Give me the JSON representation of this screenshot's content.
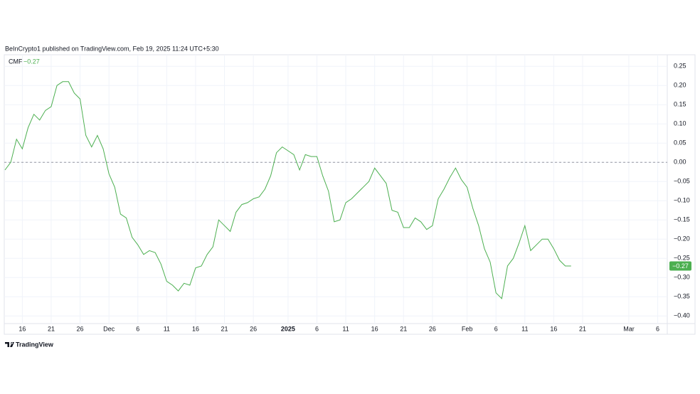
{
  "chart_data": {
    "type": "line",
    "title": "BeInCrypto1 published on TradingView.com, Feb 19, 2025 11:24 UTC+5:30",
    "source": "TradingView",
    "legend_value": "−0.27",
    "price_label": "−0.27",
    "categories": [
      null,
      null,
      null,
      "16",
      null,
      null,
      null,
      null,
      "21",
      null,
      null,
      null,
      null,
      "26",
      null,
      null,
      null,
      null,
      "Dec",
      null,
      null,
      null,
      null,
      "6",
      null,
      null,
      null,
      null,
      "11",
      null,
      null,
      null,
      null,
      "16",
      null,
      null,
      null,
      null,
      "21",
      null,
      null,
      null,
      null,
      "26",
      null,
      null,
      null,
      null,
      null,
      "2025",
      null,
      null,
      null,
      null,
      "6",
      null,
      null,
      null,
      null,
      "11",
      null,
      null,
      null,
      null,
      "16",
      null,
      null,
      null,
      null,
      "21",
      null,
      null,
      null,
      null,
      "26",
      null,
      null,
      null,
      null,
      null,
      "Feb",
      null,
      null,
      null,
      null,
      "6",
      null,
      null,
      null,
      null,
      "11",
      null,
      null,
      null,
      null,
      "16",
      null,
      null,
      null,
      null,
      "21",
      null,
      null,
      null,
      null,
      null,
      null,
      null,
      "Mar",
      null,
      null,
      null,
      null,
      "6",
      null
    ],
    "series": [
      {
        "name": "CMF",
        "color": "#4caf50",
        "values": [
          -0.02,
          0.0,
          0.06,
          0.035,
          0.09,
          0.125,
          0.11,
          0.135,
          0.145,
          0.2,
          0.21,
          0.21,
          0.18,
          0.165,
          0.07,
          0.04,
          0.07,
          0.035,
          -0.03,
          -0.065,
          -0.135,
          -0.145,
          -0.195,
          -0.215,
          -0.24,
          -0.23,
          -0.235,
          -0.265,
          -0.31,
          -0.32,
          -0.335,
          -0.315,
          -0.32,
          -0.275,
          -0.27,
          -0.24,
          -0.22,
          -0.15,
          -0.165,
          -0.18,
          -0.13,
          -0.11,
          -0.105,
          -0.095,
          -0.09,
          -0.07,
          -0.035,
          0.025,
          0.04,
          0.03,
          0.02,
          -0.02,
          0.02,
          0.015,
          0.015,
          -0.035,
          -0.075,
          -0.155,
          -0.15,
          -0.105,
          -0.095,
          -0.08,
          -0.065,
          -0.05,
          -0.015,
          -0.035,
          -0.055,
          -0.125,
          -0.13,
          -0.17,
          -0.17,
          -0.145,
          -0.155,
          -0.175,
          -0.165,
          -0.095,
          -0.07,
          -0.04,
          -0.015,
          -0.045,
          -0.065,
          -0.12,
          -0.165,
          -0.225,
          -0.26,
          -0.34,
          -0.355,
          -0.27,
          -0.25,
          -0.21,
          -0.165,
          -0.23,
          -0.215,
          -0.2,
          -0.2,
          -0.225,
          -0.255,
          -0.27,
          -0.27,
          null,
          null,
          null,
          null,
          null,
          null,
          null,
          null,
          null,
          null,
          null,
          null,
          null,
          null,
          null,
          null
        ]
      }
    ],
    "ylim": [
      -0.42,
      0.28
    ],
    "yticks": [
      {
        "value": 0.25,
        "label": "0.25"
      },
      {
        "value": 0.2,
        "label": "0.20"
      },
      {
        "value": 0.15,
        "label": "0.15"
      },
      {
        "value": 0.1,
        "label": "0.10"
      },
      {
        "value": 0.05,
        "label": "0.05"
      },
      {
        "value": 0,
        "label": "0.00"
      },
      {
        "value": -0.05,
        "label": "−0.05"
      },
      {
        "value": -0.1,
        "label": "−0.10"
      },
      {
        "value": -0.15,
        "label": "−0.15"
      },
      {
        "value": -0.2,
        "label": "−0.20"
      },
      {
        "value": -0.25,
        "label": "−0.25"
      },
      {
        "value": -0.3,
        "label": "−0.30"
      },
      {
        "value": -0.35,
        "label": "−0.35"
      },
      {
        "value": -0.4,
        "label": "−0.40"
      }
    ],
    "grid": true,
    "zero_line": true
  }
}
